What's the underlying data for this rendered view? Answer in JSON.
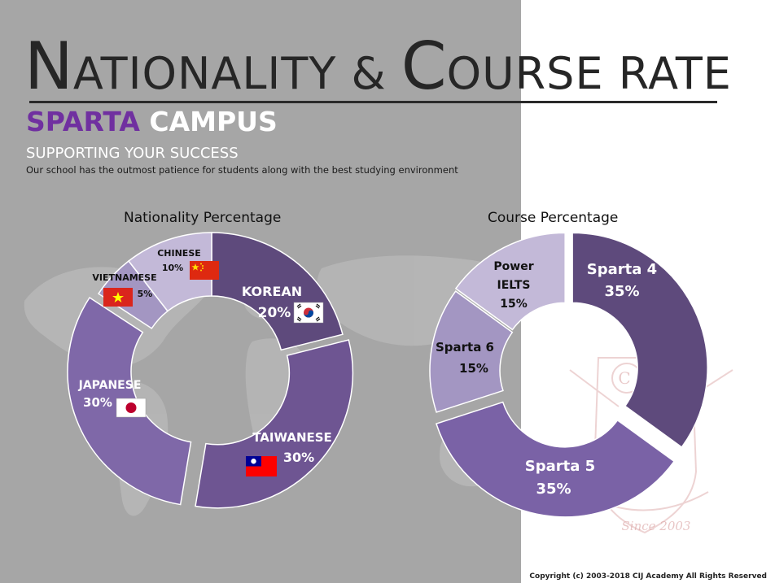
{
  "header": {
    "title_big_1": "N",
    "title_small_1": "ATIONALITY & ",
    "title_big_2": "C",
    "title_small_2": "OURSE RATE",
    "subtitle_part1": "SPARTA",
    "subtitle_part2": "CAMPUS",
    "tagline": "SUPPORTING YOUR SUCCESS",
    "description": "Our school has the outmost patience for students along with the best studying environment"
  },
  "footer": {
    "copyright": "Copyright (c) 2003-2018 CIJ Academy All Rights Reserved"
  },
  "watermark": {
    "text": "Since 2003",
    "letter": "C"
  },
  "colors": {
    "left_background": "#a6a6a6",
    "accent_purple": "#7030a0",
    "korean": "#5e4a7c",
    "taiwanese": "#6e5592",
    "japanese": "#7f68a8",
    "vietnamese": "#a396c2",
    "chinese": "#c3b9d8",
    "sparta4": "#5e4a7c",
    "sparta5": "#7a62a6",
    "sparta6": "#a396c2",
    "power_ielts": "#c3b9d8"
  },
  "chart_data": [
    {
      "type": "pie",
      "variant": "donut",
      "title": "Nationality Percentage",
      "slices": [
        {
          "label": "KOREAN",
          "value": 20,
          "value_label": "20%",
          "flag": "korea-flag",
          "color": "#5e4a7c"
        },
        {
          "label": "TAIWANESE",
          "value": 30,
          "value_label": "30%",
          "flag": "taiwan-flag",
          "color": "#6e5592"
        },
        {
          "label": "JAPANESE",
          "value": 30,
          "value_label": "30%",
          "flag": "japan-flag",
          "color": "#7f68a8"
        },
        {
          "label": "VIETNAMESE",
          "value": 5,
          "value_label": "5%",
          "flag": "vietnam-flag",
          "color": "#a396c2"
        },
        {
          "label": "CHINESE",
          "value": 10,
          "value_label": "10%",
          "flag": "china-flag",
          "color": "#c3b9d8"
        }
      ]
    },
    {
      "type": "pie",
      "variant": "donut",
      "title": "Course Percentage",
      "slices": [
        {
          "label": "Sparta 4",
          "value": 35,
          "value_label": "35%",
          "color": "#5e4a7c"
        },
        {
          "label": "Sparta 5",
          "value": 35,
          "value_label": "35%",
          "color": "#7a62a6"
        },
        {
          "label": "Sparta  6",
          "value": 15,
          "value_label": "15%",
          "color": "#a396c2"
        },
        {
          "label": "Power IELTS",
          "label_lines": [
            "Power",
            "IELTS"
          ],
          "value": 15,
          "value_label": "15%",
          "color": "#c3b9d8"
        }
      ]
    }
  ]
}
